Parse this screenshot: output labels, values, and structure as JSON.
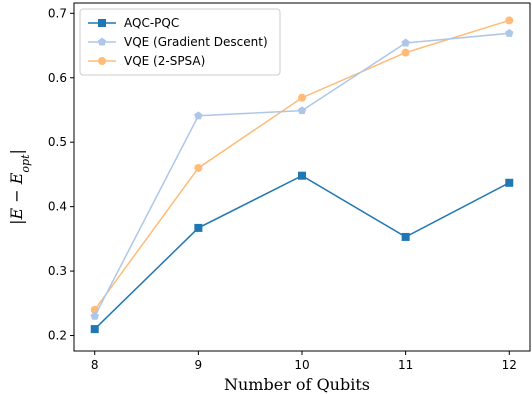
{
  "chart_data": {
    "type": "line",
    "x": [
      8,
      9,
      10,
      11,
      12
    ],
    "xticks": [
      8,
      9,
      10,
      11,
      12
    ],
    "yticks": [
      0.2,
      0.3,
      0.4,
      0.5,
      0.6,
      0.7
    ],
    "xlim": [
      7.8,
      12.2
    ],
    "ylim": [
      0.176,
      0.716
    ],
    "xlabel": "Number of Qubits",
    "ylabel": "|E − E_opt|",
    "ylabel_main": "|E − E",
    "ylabel_sub": "opt",
    "ylabel_close": "|",
    "grid": false,
    "legend_position": "top-left",
    "series": [
      {
        "name": "AQC-PQC",
        "values": [
          0.21,
          0.367,
          0.448,
          0.353,
          0.437
        ],
        "color": "#1f77b4",
        "marker": "square",
        "opacity": 1.0
      },
      {
        "name": "VQE (Gradient Descent)",
        "values": [
          0.23,
          0.541,
          0.549,
          0.654,
          0.669
        ],
        "color": "#aec7e8",
        "marker": "pentagon",
        "opacity": 1.0
      },
      {
        "name": "VQE (2-SPSA)",
        "values": [
          0.24,
          0.46,
          0.569,
          0.639,
          0.689
        ],
        "color": "#ffbb78",
        "marker": "circle",
        "opacity": 1.0
      }
    ]
  }
}
